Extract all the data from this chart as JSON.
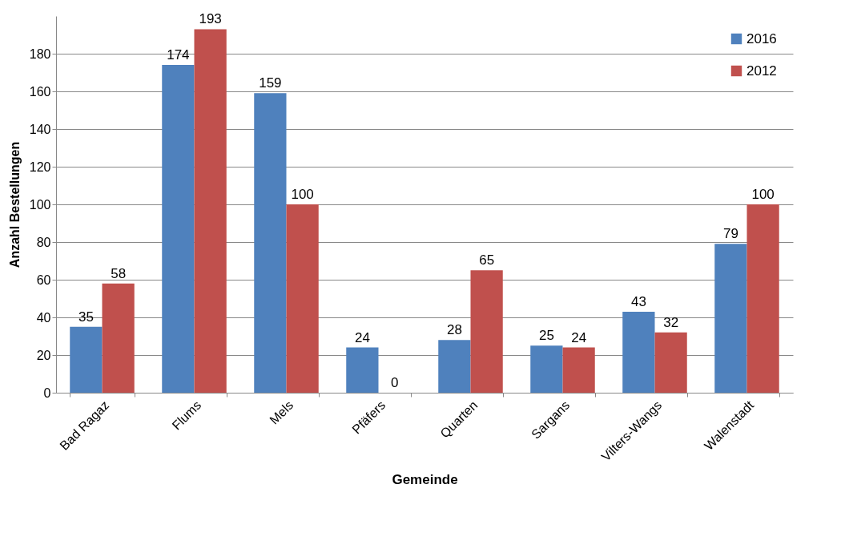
{
  "chart_data": {
    "type": "bar",
    "xlabel": "Gemeinde",
    "ylabel": "Anzahl Bestellungen",
    "categories": [
      "Bad Ragaz",
      "Flums",
      "Mels",
      "Pfäfers",
      "Quarten",
      "Sargans",
      "Vilters-Wangs",
      "Walenstadt"
    ],
    "series": [
      {
        "name": "2016",
        "color": "#4f81bd",
        "values": [
          35,
          174,
          159,
          24,
          28,
          25,
          43,
          79
        ]
      },
      {
        "name": "2012",
        "color": "#c0504d",
        "values": [
          58,
          193,
          100,
          0,
          65,
          24,
          32,
          100
        ]
      }
    ],
    "ylim": [
      0,
      200
    ],
    "yticks": [
      0,
      20,
      40,
      60,
      80,
      100,
      120,
      140,
      160,
      180
    ],
    "grid": "y",
    "legend": "top right",
    "data_labels": true
  }
}
